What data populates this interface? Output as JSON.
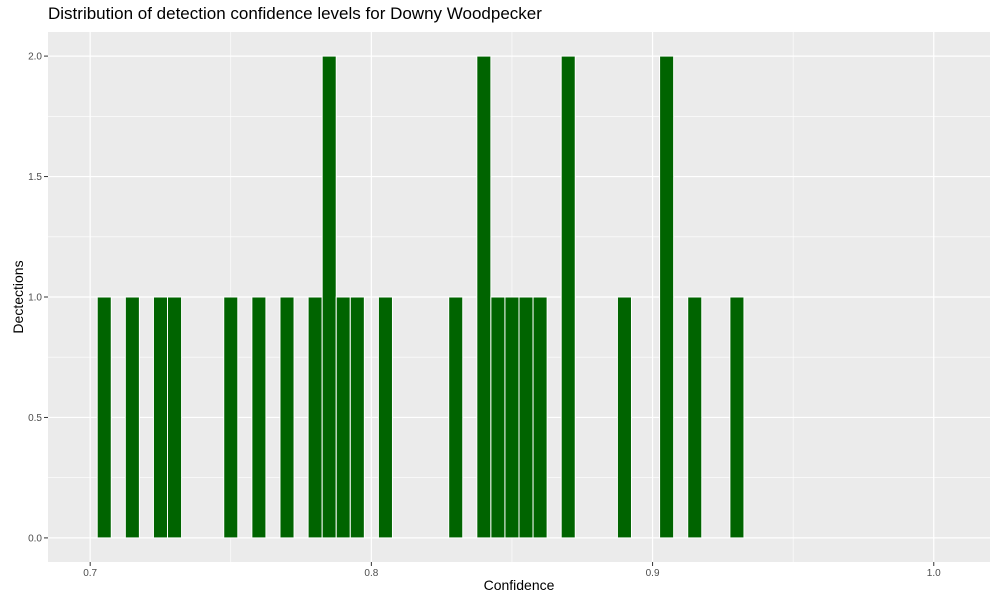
{
  "chart_data": {
    "type": "bar",
    "title": "Distribution of detection confidence levels for Downy Woodpecker",
    "xlabel": "Confidence",
    "ylabel": "Dectections",
    "xlim": [
      0.685,
      1.02
    ],
    "ylim": [
      -0.1,
      2.1
    ],
    "x_ticks": [
      {
        "value": 0.7,
        "label": "0.7"
      },
      {
        "value": 0.8,
        "label": "0.8"
      },
      {
        "value": 0.9,
        "label": "0.9"
      },
      {
        "value": 1.0,
        "label": "1.0"
      }
    ],
    "y_ticks": [
      {
        "value": 0.0,
        "label": "0.0"
      },
      {
        "value": 0.5,
        "label": "0.5"
      },
      {
        "value": 1.0,
        "label": "1.0"
      },
      {
        "value": 1.5,
        "label": "1.5"
      },
      {
        "value": 2.0,
        "label": "2.0"
      }
    ],
    "bin_width": 0.005,
    "x": [
      0.705,
      0.715,
      0.725,
      0.73,
      0.75,
      0.76,
      0.77,
      0.78,
      0.785,
      0.79,
      0.795,
      0.805,
      0.83,
      0.84,
      0.845,
      0.85,
      0.855,
      0.86,
      0.87,
      0.89,
      0.905,
      0.915,
      0.93
    ],
    "values": [
      1,
      1,
      1,
      1,
      1,
      1,
      1,
      1,
      2,
      1,
      1,
      1,
      1,
      2,
      1,
      1,
      1,
      1,
      2,
      1,
      2,
      1,
      1
    ],
    "grid": true,
    "colors": {
      "bar": "#006400",
      "panel": "#ebebeb",
      "grid": "#ffffff"
    }
  }
}
